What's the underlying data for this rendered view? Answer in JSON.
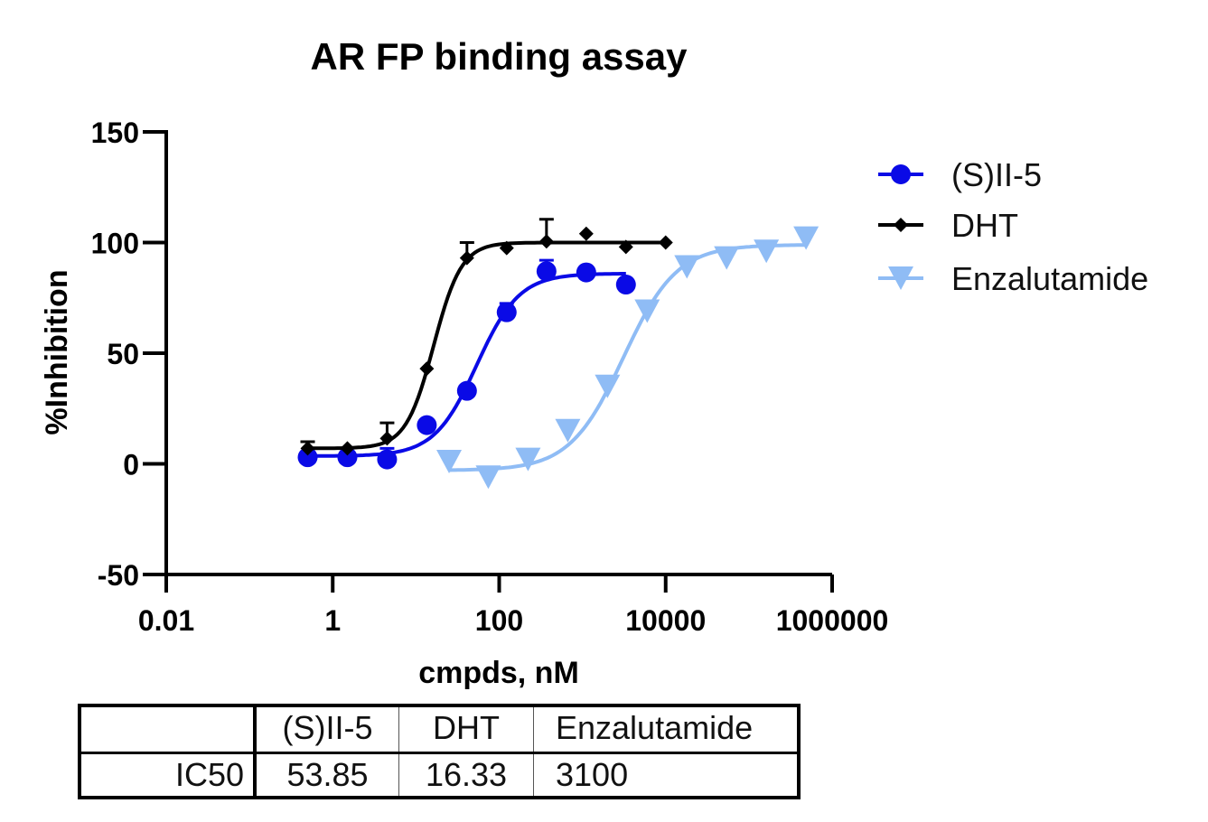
{
  "chart_data": {
    "type": "scatter",
    "title": "AR FP binding assay",
    "xlabel": "cmpds, nM",
    "ylabel": "%Inhibition",
    "x_scale": "log",
    "xlim": [
      0.01,
      1000000
    ],
    "ylim": [
      -50,
      150
    ],
    "x_ticks": [
      0.01,
      1,
      100,
      10000,
      1000000
    ],
    "x_tick_labels": [
      "0.01",
      "1",
      "100",
      "10000",
      "1000000"
    ],
    "y_ticks": [
      -50,
      0,
      50,
      100,
      150
    ],
    "y_tick_labels": [
      "-50",
      "0",
      "50",
      "100",
      "150"
    ],
    "legend_position": "right",
    "series": [
      {
        "name": "(S)II-5",
        "color": "#0a0ae6",
        "marker": "circle",
        "x": [
          0.5,
          1.5,
          4.5,
          13.5,
          41,
          123,
          370,
          1111,
          3333
        ],
        "y": [
          3,
          3,
          2,
          17.5,
          33,
          68.5,
          87,
          86.5,
          81
        ],
        "err": [
          1,
          1,
          5,
          1,
          1,
          4,
          5,
          1,
          1
        ],
        "fit": {
          "bottom": 3.5,
          "top": 86,
          "ic50": 53.85,
          "hill": 1.7
        }
      },
      {
        "name": "DHT",
        "color": "#000000",
        "marker": "diamond",
        "x": [
          0.5,
          1.5,
          4.5,
          13.5,
          41,
          123,
          370,
          1111,
          3333,
          10000
        ],
        "y": [
          7,
          7,
          11.5,
          43,
          93,
          97.5,
          100.5,
          104,
          98,
          100
        ],
        "err": [
          3,
          1,
          7,
          1,
          7,
          1,
          10,
          1,
          1,
          1
        ],
        "fit": {
          "bottom": 7,
          "top": 100,
          "ic50": 16.33,
          "hill": 2.6
        }
      },
      {
        "name": "Enzalutamide",
        "color": "#8fbcf5",
        "marker": "triangle-down",
        "x": [
          25,
          74,
          222,
          667,
          2000,
          6000,
          18000,
          54000,
          162000,
          486000
        ],
        "y": [
          1,
          -6,
          2,
          15,
          35,
          69,
          89,
          93,
          96,
          102
        ],
        "err": [
          1,
          1,
          1,
          1,
          1,
          1,
          1,
          1,
          1,
          1
        ],
        "fit": {
          "bottom": -3,
          "top": 99,
          "ic50": 3100,
          "hill": 1.35
        }
      }
    ]
  },
  "table": {
    "header": [
      "",
      "(S)II-5",
      "DHT",
      "Enzalutamide"
    ],
    "rows": [
      [
        "IC50",
        "53.85",
        "16.33",
        "3100"
      ]
    ]
  }
}
